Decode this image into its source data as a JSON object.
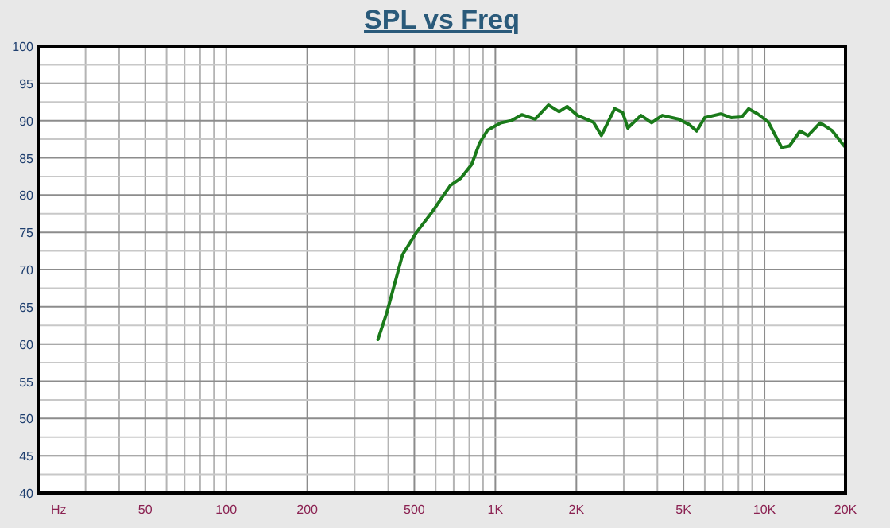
{
  "chart_data": {
    "type": "line",
    "title": "SPL vs Freq",
    "xlabel": "Hz",
    "log": "x",
    "grid": true,
    "line_style": "solid",
    "xlim": [
      20,
      20000
    ],
    "xticks": [
      {
        "value": 20,
        "label": null
      },
      {
        "value": 30,
        "label": null
      },
      {
        "value": 40,
        "label": null
      },
      50,
      {
        "value": 60,
        "label": null
      },
      {
        "value": 70,
        "label": null
      },
      {
        "value": 80,
        "label": null
      },
      {
        "value": 90,
        "label": null
      },
      100,
      200,
      {
        "value": 300,
        "label": null
      },
      {
        "value": 400,
        "label": null
      },
      500,
      {
        "value": 600,
        "label": null
      },
      {
        "value": 700,
        "label": null
      },
      {
        "value": 800,
        "label": null
      },
      {
        "value": 900,
        "label": null
      },
      {
        "value": 1000,
        "label": "1K"
      },
      {
        "value": 2000,
        "label": "2K"
      },
      {
        "value": 3000,
        "label": null
      },
      {
        "value": 4000,
        "label": null
      },
      {
        "value": 5000,
        "label": "5K"
      },
      {
        "value": 6000,
        "label": null
      },
      {
        "value": 7000,
        "label": null
      },
      {
        "value": 8000,
        "label": null
      },
      {
        "value": 9000,
        "label": null
      },
      {
        "value": 10000,
        "label": "10K"
      },
      {
        "value": 20000,
        "label": "20K"
      }
    ],
    "ylim": [
      40,
      100
    ],
    "yticks": [
      40,
      {
        "value": 42.5,
        "label": null
      },
      45,
      {
        "value": 47.5,
        "label": null
      },
      50,
      {
        "value": 52.5,
        "label": null
      },
      55,
      {
        "value": 57.5,
        "label": null
      },
      60,
      {
        "value": 62.5,
        "label": null
      },
      65,
      {
        "value": 67.5,
        "label": null
      },
      70,
      {
        "value": 72.5,
        "label": null
      },
      75,
      {
        "value": 77.5,
        "label": null
      },
      80,
      {
        "value": 82.5,
        "label": null
      },
      85,
      {
        "value": 87.5,
        "label": null
      },
      90,
      {
        "value": 92.5,
        "label": null
      },
      95,
      {
        "value": 97.5,
        "label": null
      },
      100
    ],
    "x": [
      366,
      395,
      452,
      507,
      581,
      681,
      745,
      816,
      874,
      935,
      1047,
      1146,
      1254,
      1405,
      1574,
      1725,
      1847,
      2020,
      2312,
      2477,
      2775,
      2970,
      3105,
      3477,
      3808,
      4170,
      4783,
      5236,
      5600,
      5998,
      6871,
      7518,
      8240,
      8730,
      9440,
      10330,
      11580,
      12390,
      13560,
      14520,
      16110,
      17780,
      19770
    ],
    "series": [
      {
        "color": "#1a7a1a",
        "values": [
          60.6,
          64.2,
          72.0,
          74.9,
          77.7,
          81.3,
          82.3,
          84.1,
          87.0,
          88.7,
          89.7,
          90.0,
          90.8,
          90.2,
          92.1,
          91.2,
          91.9,
          90.7,
          89.8,
          88.0,
          91.6,
          91.1,
          89.0,
          90.7,
          89.7,
          90.7,
          90.2,
          89.5,
          88.6,
          90.4,
          90.9,
          90.4,
          90.5,
          91.6,
          90.9,
          89.8,
          86.4,
          86.6,
          88.6,
          88.0,
          89.7,
          88.7,
          86.6
        ]
      }
    ]
  }
}
